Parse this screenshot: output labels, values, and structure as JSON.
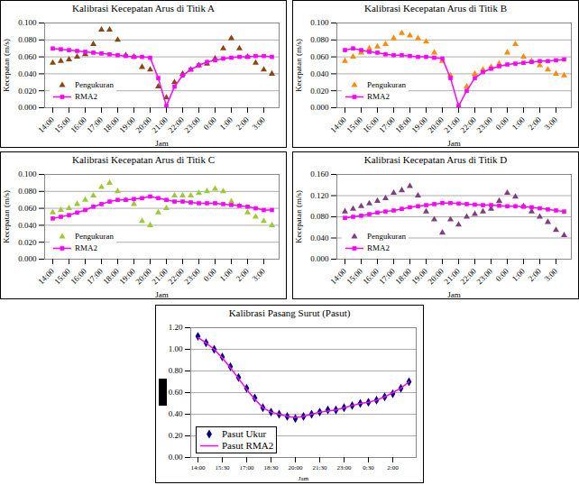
{
  "chart_data": [
    {
      "type": "line",
      "title": "Kalibrasi Kecepatan Arus di Titik A",
      "x_label": "Jam",
      "y_label": "Kecepatan (m/s)",
      "categories": [
        "14:00",
        null,
        "15:00",
        null,
        "16:00",
        null,
        "17:00",
        null,
        "18:00",
        null,
        "19:00",
        null,
        "20:00",
        null,
        "21:00",
        null,
        "22:00",
        null,
        "23:00",
        null,
        "0:00",
        null,
        "1:00",
        null,
        "2:00",
        null,
        "3:00",
        null
      ],
      "series": [
        {
          "name": "Pengukuran",
          "color": "#8B4513",
          "marker": "triangle",
          "line_style": "none",
          "values": [
            0.053,
            0.055,
            0.057,
            0.06,
            0.063,
            0.075,
            0.092,
            0.092,
            0.08,
            0.062,
            0.06,
            0.048,
            0.045,
            0.025,
            0.012,
            0.03,
            0.04,
            0.045,
            0.05,
            0.052,
            0.058,
            0.07,
            0.082,
            0.07,
            0.06,
            0.053,
            0.045,
            0.04
          ]
        },
        {
          "name": "RMA2",
          "color": "#FF00FF",
          "marker": "square",
          "line_style": "solid",
          "values": [
            0.07,
            0.069,
            0.068,
            0.067,
            0.066,
            0.065,
            0.064,
            0.063,
            0.062,
            0.061,
            0.06,
            0.06,
            0.059,
            0.035,
            0.002,
            0.025,
            0.038,
            0.045,
            0.05,
            0.054,
            0.056,
            0.058,
            0.059,
            0.06,
            0.06,
            0.061,
            0.061,
            0.06
          ]
        }
      ],
      "ylim": [
        0,
        0.1
      ],
      "yticks": [
        {
          "value": 0,
          "label": "0.000"
        },
        {
          "value": 0.02,
          "label": "0.020"
        },
        {
          "value": 0.04,
          "label": "0.040"
        },
        {
          "value": 0.06,
          "label": "0.060"
        },
        {
          "value": 0.08,
          "label": "0.080"
        },
        {
          "value": 0.1,
          "label": "0.100"
        }
      ],
      "grid": true,
      "legend": "bottom-left"
    },
    {
      "type": "line",
      "title": "Kalibrasi Kecepatan Arus di Titik B",
      "x_label": "Jam",
      "y_label": "Kecepatan (m/s)",
      "categories": [
        "14:00",
        null,
        "15:00",
        null,
        "16:00",
        null,
        "17:00",
        null,
        "18:00",
        null,
        "19:00",
        null,
        "20:00",
        null,
        "21:00",
        null,
        "22:00",
        null,
        "23:00",
        null,
        "0:00",
        null,
        "1:00",
        null,
        "2:00",
        null,
        "3:00",
        null
      ],
      "series": [
        {
          "name": "Pengukuran",
          "color": "#FF8C00",
          "marker": "triangle",
          "line_style": "none",
          "values": [
            0.055,
            0.06,
            0.065,
            0.07,
            0.072,
            0.075,
            0.082,
            0.088,
            0.085,
            0.082,
            0.078,
            0.065,
            0.055,
            0.038,
            0.002,
            0.025,
            0.04,
            0.045,
            0.048,
            0.052,
            0.065,
            0.075,
            0.06,
            0.055,
            0.05,
            0.045,
            0.04,
            0.038
          ]
        },
        {
          "name": "RMA2",
          "color": "#FF00FF",
          "marker": "square",
          "line_style": "solid",
          "values": [
            0.068,
            0.07,
            0.068,
            0.066,
            0.065,
            0.063,
            0.062,
            0.062,
            0.061,
            0.06,
            0.06,
            0.059,
            0.058,
            0.035,
            0.002,
            0.02,
            0.035,
            0.042,
            0.046,
            0.049,
            0.051,
            0.052,
            0.053,
            0.054,
            0.055,
            0.055,
            0.056,
            0.057
          ]
        }
      ],
      "ylim": [
        0,
        0.1
      ],
      "yticks": [
        {
          "value": 0,
          "label": "0.000"
        },
        {
          "value": 0.02,
          "label": "0.020"
        },
        {
          "value": 0.04,
          "label": "0.040"
        },
        {
          "value": 0.06,
          "label": "0.060"
        },
        {
          "value": 0.08,
          "label": "0.080"
        },
        {
          "value": 0.1,
          "label": "0.100"
        }
      ],
      "grid": true,
      "legend": "bottom-left"
    },
    {
      "type": "line",
      "title": "Kalibrasi Kecepatan Arus di Titik C",
      "x_label": "Jam",
      "y_label": "Kecepatan (m/s)",
      "categories": [
        "14:00",
        null,
        "15:00",
        null,
        "16:00",
        null,
        "17:00",
        null,
        "18:00",
        null,
        "19:00",
        null,
        "20:00",
        null,
        "21:00",
        null,
        "22:00",
        null,
        "23:00",
        null,
        "0:00",
        null,
        "1:00",
        null,
        "2:00",
        null,
        "3:00",
        null
      ],
      "series": [
        {
          "name": "Pengukuran",
          "color": "#99CC33",
          "marker": "triangle",
          "line_style": "none",
          "values": [
            0.055,
            0.058,
            0.06,
            0.065,
            0.07,
            0.075,
            0.085,
            0.09,
            0.08,
            0.07,
            0.065,
            0.045,
            0.04,
            0.055,
            0.06,
            0.075,
            0.075,
            0.075,
            0.078,
            0.08,
            0.083,
            0.08,
            0.068,
            0.063,
            0.055,
            0.05,
            0.045,
            0.04
          ]
        },
        {
          "name": "RMA2",
          "color": "#FF00FF",
          "marker": "square",
          "line_style": "solid",
          "values": [
            0.048,
            0.05,
            0.052,
            0.055,
            0.058,
            0.062,
            0.065,
            0.068,
            0.07,
            0.07,
            0.071,
            0.072,
            0.074,
            0.072,
            0.07,
            0.068,
            0.068,
            0.067,
            0.066,
            0.066,
            0.066,
            0.065,
            0.064,
            0.063,
            0.062,
            0.06,
            0.058,
            0.058
          ]
        }
      ],
      "ylim": [
        0,
        0.1
      ],
      "yticks": [
        {
          "value": 0,
          "label": "0.000"
        },
        {
          "value": 0.02,
          "label": "0.020"
        },
        {
          "value": 0.04,
          "label": "0.040"
        },
        {
          "value": 0.06,
          "label": "0.060"
        },
        {
          "value": 0.08,
          "label": "0.080"
        },
        {
          "value": 0.1,
          "label": "0.100"
        }
      ],
      "grid": true,
      "legend": "bottom-left"
    },
    {
      "type": "line",
      "title": "Kalibrasi Kecepatan Arus di Titik D",
      "x_label": "Jam",
      "y_label": "Kecepatan (m/s)",
      "categories": [
        "14:00",
        null,
        "15:00",
        null,
        "16:00",
        null,
        "17:00",
        null,
        "18:00",
        null,
        "19:00",
        null,
        "20:00",
        null,
        "21:00",
        null,
        "22:00",
        null,
        "23:00",
        null,
        "0:00",
        null,
        "1:00",
        null,
        "2:00",
        null,
        "3:00",
        null
      ],
      "series": [
        {
          "name": "Pengukuran",
          "color": "#7F3F7F",
          "marker": "triangle",
          "line_style": "none",
          "values": [
            0.09,
            0.095,
            0.1,
            0.105,
            0.11,
            0.115,
            0.125,
            0.13,
            0.138,
            0.12,
            0.09,
            0.075,
            0.05,
            0.075,
            0.065,
            0.08,
            0.085,
            0.09,
            0.095,
            0.11,
            0.125,
            0.118,
            0.1,
            0.09,
            0.08,
            0.07,
            0.055,
            0.045
          ]
        },
        {
          "name": "RMA2",
          "color": "#FF00FF",
          "marker": "square",
          "line_style": "solid",
          "values": [
            0.078,
            0.08,
            0.082,
            0.085,
            0.088,
            0.09,
            0.092,
            0.095,
            0.098,
            0.1,
            0.102,
            0.104,
            0.106,
            0.106,
            0.105,
            0.104,
            0.103,
            0.102,
            0.102,
            0.101,
            0.1,
            0.1,
            0.099,
            0.098,
            0.096,
            0.094,
            0.092,
            0.09
          ]
        }
      ],
      "ylim": [
        0,
        0.16
      ],
      "yticks": [
        {
          "value": 0,
          "label": "0.000"
        },
        {
          "value": 0.04,
          "label": "0.040"
        },
        {
          "value": 0.08,
          "label": "0.080"
        },
        {
          "value": 0.12,
          "label": "0.120"
        },
        {
          "value": 0.16,
          "label": "0.160"
        }
      ],
      "grid": true,
      "legend": "bottom-left"
    },
    {
      "type": "line",
      "title": "Kalibrasi Pasang Surut (Pasut)",
      "x_label": "Jam",
      "categories": [
        "14:00",
        null,
        null,
        "15:30",
        null,
        null,
        "17:00",
        null,
        null,
        "18:30",
        null,
        null,
        "20:00",
        null,
        null,
        "21:30",
        null,
        null,
        "23:00",
        null,
        null,
        "0:30",
        null,
        null,
        "2:00",
        null,
        null
      ],
      "series": [
        {
          "name": "Pasut Ukur",
          "color": "#000080",
          "marker": "diamond",
          "line_style": "none",
          "values": [
            1.12,
            1.06,
            1.0,
            0.93,
            0.84,
            0.74,
            0.64,
            0.55,
            0.46,
            0.42,
            0.4,
            0.38,
            0.36,
            0.38,
            0.4,
            0.42,
            0.44,
            0.44,
            0.46,
            0.48,
            0.5,
            0.51,
            0.53,
            0.56,
            0.59,
            0.64,
            0.7
          ]
        },
        {
          "name": "Pasut RMA2",
          "color": "#FF00FF",
          "marker": "none",
          "line_style": "solid",
          "values": [
            1.11,
            1.06,
            1.0,
            0.92,
            0.83,
            0.73,
            0.63,
            0.54,
            0.46,
            0.42,
            0.4,
            0.38,
            0.37,
            0.38,
            0.4,
            0.42,
            0.43,
            0.44,
            0.46,
            0.48,
            0.5,
            0.51,
            0.53,
            0.56,
            0.6,
            0.64,
            0.7
          ]
        }
      ],
      "ylim": [
        0,
        1.2
      ],
      "yticks": [
        {
          "value": 0,
          "label": "0.00"
        },
        {
          "value": 0.2,
          "label": "0.20"
        },
        {
          "value": 0.4,
          "label": "0.40"
        },
        {
          "value": 0.6,
          "label": "0.60"
        },
        {
          "value": 0.8,
          "label": "0.80"
        },
        {
          "value": 1.0,
          "label": "1.00"
        },
        {
          "value": 1.2,
          "label": "1.20"
        }
      ],
      "grid": true,
      "legend": "bottom-left"
    }
  ]
}
